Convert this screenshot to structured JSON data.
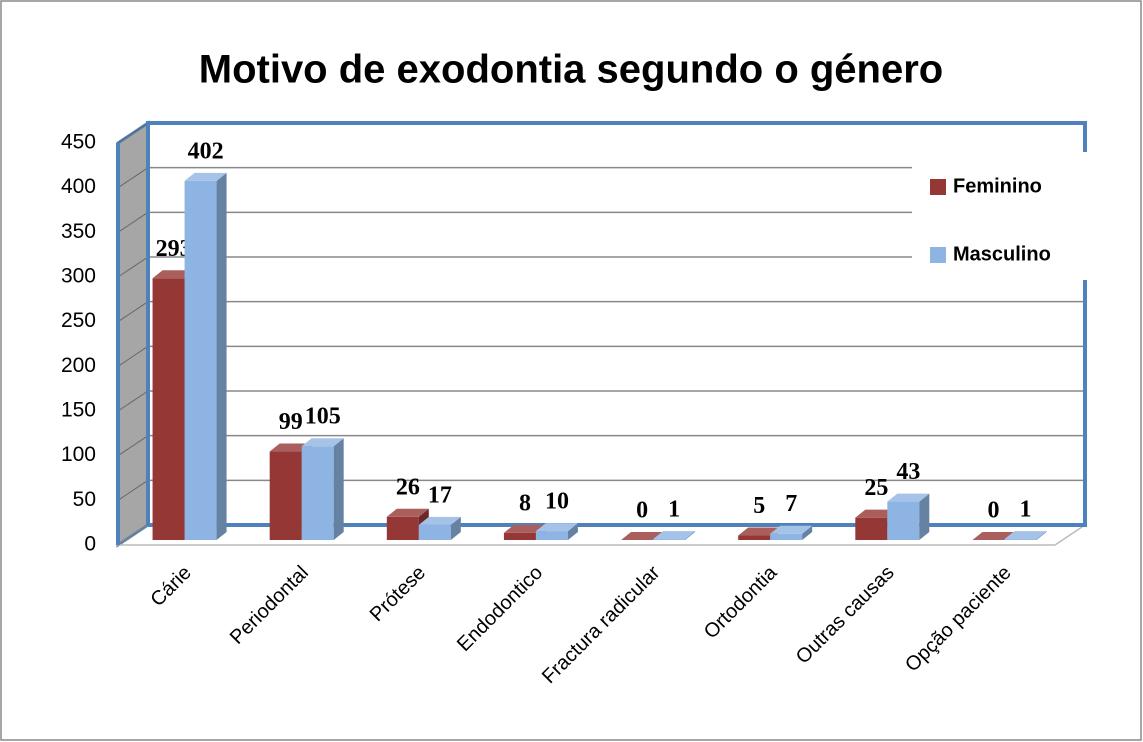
{
  "chart_data": {
    "type": "bar",
    "title": "Motivo de exodontia segundo o género",
    "categories": [
      "Cárie",
      "Periodontal",
      "Prótese",
      "Endodontico",
      "Fractura radicular",
      "Ortodontia",
      "Outras causas",
      "Opção paciente"
    ],
    "series": [
      {
        "name": "Feminino",
        "color": "#953735",
        "values": [
          293,
          99,
          26,
          8,
          0,
          5,
          25,
          0
        ]
      },
      {
        "name": "Masculino",
        "color": "#8eb4e3",
        "values": [
          402,
          105,
          17,
          10,
          1,
          7,
          43,
          1
        ]
      }
    ],
    "ylim": [
      0,
      450
    ],
    "yticks": [
      0,
      50,
      100,
      150,
      200,
      250,
      300,
      350,
      400,
      450
    ],
    "grid": true,
    "legend": "right"
  }
}
